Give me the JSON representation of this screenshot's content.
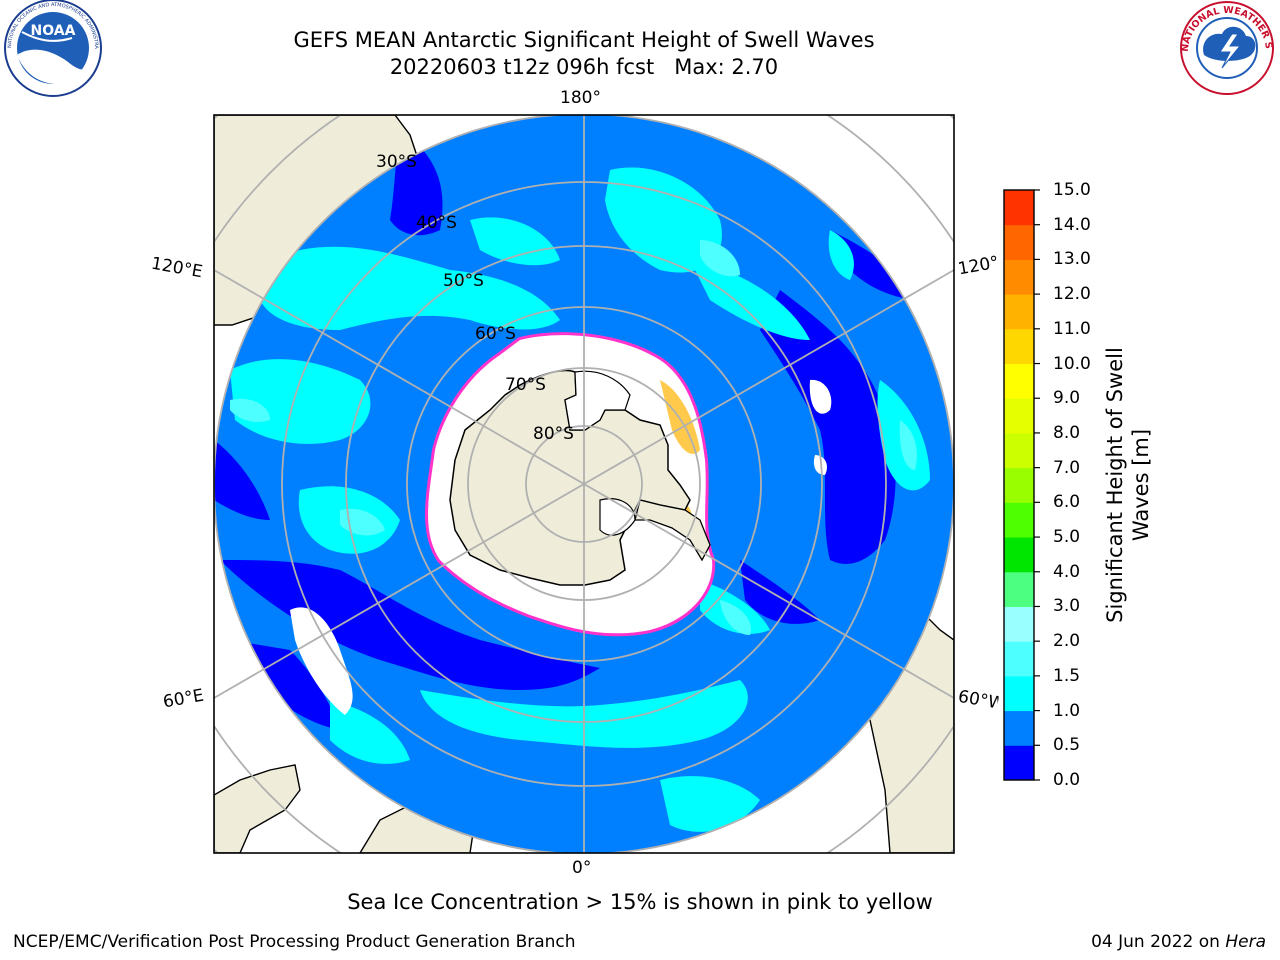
{
  "title": {
    "line1": "GEFS MEAN Antarctic Significant Height of Swell Waves",
    "line2": "20220603 t12z 096h fcst   Max: 2.70"
  },
  "longitude_labels": {
    "top": "180°",
    "upper_left": "120°E",
    "upper_right": "120°",
    "lower_left": "60°E",
    "lower_right": "60°W",
    "bottom": "0°"
  },
  "latitude_labels": [
    "30°S",
    "40°S",
    "50°S",
    "60°S",
    "70°S",
    "80°S"
  ],
  "colorbar": {
    "label": "Significant Height of Swell Waves [m]",
    "ticks": [
      "15.0",
      "14.0",
      "13.0",
      "12.0",
      "11.0",
      "10.0",
      "9.0",
      "8.0",
      "7.0",
      "6.0",
      "5.0",
      "4.0",
      "3.0",
      "2.0",
      "1.5",
      "1.0",
      "0.5",
      "0.0"
    ],
    "colors": [
      "#0000ff",
      "#0080ff",
      "#00ffff",
      "#4dffff",
      "#99ffff",
      "#4dff80",
      "#00e600",
      "#4dff00",
      "#99ff00",
      "#ccff00",
      "#e6ff00",
      "#ffff00",
      "#ffd700",
      "#ffb300",
      "#ff8c00",
      "#ff6600",
      "#ff3300",
      "#ff0000"
    ]
  },
  "sea_ice_note": "Sea Ice Concentration > 15% is shown in pink to yellow",
  "credits": {
    "left": "NCEP/EMC/Verification Post Processing Product Generation Branch",
    "right_date": "04 Jun 2022 on ",
    "right_machine": "Hera"
  },
  "logos": {
    "noaa_text": "NOAA",
    "nws_text": "NATIONAL WEATHER SERVICE",
    "noaa_ring_text": "NATIONAL OCEANIC AND ATMOSPHERIC ADMINISTRATION · U.S. DEPARTMENT OF COMMERCE"
  },
  "colors": {
    "land": "#efedda",
    "sea_ice": "#ffffff",
    "ice_edge": "#ff33cc",
    "gridline": "#b0b0b0",
    "map_background": "#ffffff"
  }
}
